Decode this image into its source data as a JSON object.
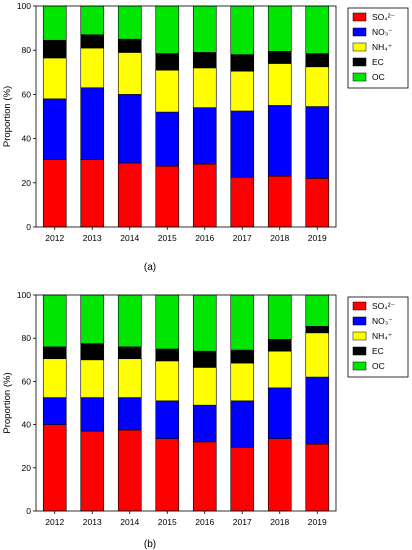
{
  "figure": {
    "panel_a_caption": "(a)",
    "panel_b_caption": "(b)"
  },
  "legend_items": [
    {
      "label": "SO₄²⁻",
      "color": "#ff0000"
    },
    {
      "label": "NO₃⁻",
      "color": "#0000ff"
    },
    {
      "label": "NH₄⁺",
      "color": "#ffff00"
    },
    {
      "label": "EC",
      "color": "#000000"
    },
    {
      "label": "OC",
      "color": "#00e600"
    }
  ],
  "chart_data": [
    {
      "type": "bar",
      "stacked": true,
      "ylabel": "Proportion (%)",
      "xlabel": "",
      "ylim": [
        0,
        100
      ],
      "yticks": [
        0,
        20,
        40,
        60,
        80,
        100
      ],
      "categories": [
        "2012",
        "2013",
        "2014",
        "2015",
        "2016",
        "2017",
        "2018",
        "2019"
      ],
      "legend_position": "top-right",
      "series": [
        {
          "name": "SO₄²⁻",
          "color": "#ff0000",
          "values": [
            30.5,
            30.5,
            29,
            27.5,
            28.5,
            22.5,
            23,
            22
          ]
        },
        {
          "name": "NO₃⁻",
          "color": "#0000ff",
          "values": [
            27.5,
            32.5,
            31,
            24.5,
            25.5,
            30,
            32,
            32.5
          ]
        },
        {
          "name": "NH₄⁺",
          "color": "#ffff00",
          "values": [
            18.5,
            18,
            19,
            19,
            18,
            18,
            19,
            18
          ]
        },
        {
          "name": "EC",
          "color": "#000000",
          "values": [
            8,
            6,
            6,
            7.5,
            7,
            7.5,
            5.5,
            6
          ]
        },
        {
          "name": "OC",
          "color": "#00e600",
          "values": [
            15.5,
            13,
            15,
            21.5,
            21,
            22,
            20.5,
            21.5
          ]
        }
      ]
    },
    {
      "type": "bar",
      "stacked": true,
      "ylabel": "Proportion (%)",
      "xlabel": "",
      "ylim": [
        0,
        100
      ],
      "yticks": [
        0,
        20,
        40,
        60,
        80,
        100
      ],
      "categories": [
        "2012",
        "2013",
        "2014",
        "2015",
        "2016",
        "2017",
        "2018",
        "2019"
      ],
      "legend_position": "top-right",
      "series": [
        {
          "name": "SO₄²⁻",
          "color": "#ff0000",
          "values": [
            40,
            37,
            37.5,
            33.5,
            32,
            29.5,
            33.5,
            31
          ]
        },
        {
          "name": "NO₃⁻",
          "color": "#0000ff",
          "values": [
            12.5,
            15.5,
            15,
            17.5,
            17,
            21.5,
            23.5,
            31
          ]
        },
        {
          "name": "NH₄⁺",
          "color": "#ffff00",
          "values": [
            18,
            17.5,
            18,
            18.5,
            17.5,
            17.5,
            17,
            20.5
          ]
        },
        {
          "name": "EC",
          "color": "#000000",
          "values": [
            5.5,
            7.5,
            5.5,
            5.5,
            7.5,
            6,
            5.5,
            3
          ]
        },
        {
          "name": "OC",
          "color": "#00e600",
          "values": [
            24,
            22.5,
            24,
            25,
            26,
            25.5,
            20.5,
            14.5
          ]
        }
      ]
    }
  ]
}
